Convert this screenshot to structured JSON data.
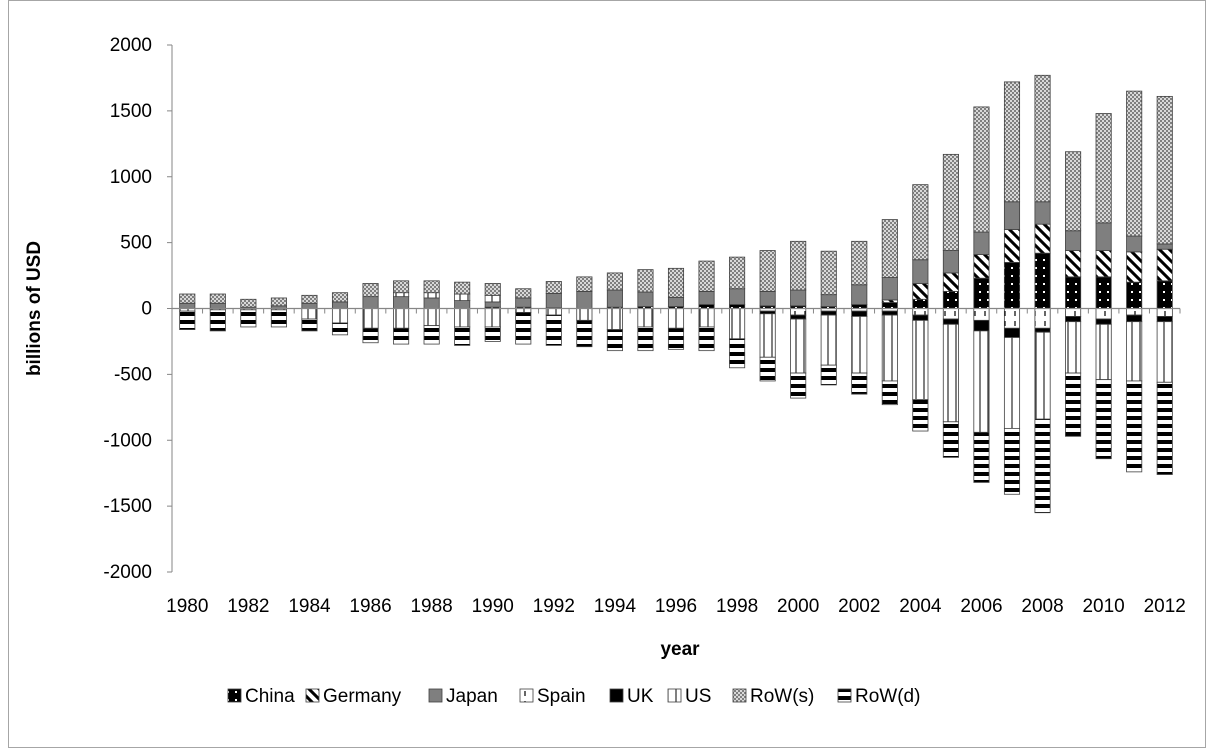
{
  "chart_data": {
    "type": "bar",
    "stacked": true,
    "xlabel": "year",
    "ylabel": "billions of USD",
    "ylim": [
      -2000,
      2000
    ],
    "yticks": [
      2000,
      1500,
      1000,
      500,
      0,
      -500,
      -1000,
      -1500,
      -2000
    ],
    "x_tick_labels": [
      "1980",
      "1982",
      "1984",
      "1986",
      "1988",
      "1990",
      "1992",
      "1994",
      "1996",
      "1998",
      "2000",
      "2002",
      "2004",
      "2006",
      "2008",
      "2010",
      "2012"
    ],
    "categories": [
      "1980",
      "1981",
      "1982",
      "1983",
      "1984",
      "1985",
      "1986",
      "1987",
      "1988",
      "1989",
      "1990",
      "1991",
      "1992",
      "1993",
      "1994",
      "1995",
      "1996",
      "1997",
      "1998",
      "1999",
      "2000",
      "2001",
      "2002",
      "2003",
      "2004",
      "2005",
      "2006",
      "2007",
      "2008",
      "2009",
      "2010",
      "2011",
      "2012"
    ],
    "legend_position": "bottom",
    "series": [
      {
        "name": "China",
        "pattern": "china",
        "values": [
          0,
          0,
          0,
          0,
          0,
          0,
          0,
          0,
          0,
          0,
          10,
          10,
          5,
          0,
          10,
          15,
          15,
          30,
          30,
          20,
          20,
          15,
          30,
          45,
          70,
          130,
          230,
          350,
          420,
          240,
          240,
          200,
          210
        ]
      },
      {
        "name": "Germany",
        "pattern": "germany",
        "values": [
          0,
          0,
          0,
          0,
          0,
          0,
          0,
          0,
          0,
          0,
          0,
          0,
          0,
          0,
          0,
          0,
          0,
          0,
          0,
          0,
          0,
          0,
          0,
          20,
          120,
          140,
          180,
          250,
          220,
          200,
          200,
          230,
          240
        ]
      },
      {
        "name": "Japan",
        "pattern": "japan",
        "values": [
          40,
          40,
          10,
          20,
          40,
          50,
          90,
          90,
          80,
          60,
          40,
          70,
          110,
          130,
          130,
          110,
          70,
          100,
          120,
          110,
          120,
          90,
          150,
          170,
          180,
          170,
          170,
          210,
          170,
          150,
          210,
          120,
          40
        ]
      },
      {
        "name": "Spain",
        "pattern": "spain",
        "values": [
          0,
          0,
          0,
          0,
          0,
          0,
          0,
          0,
          0,
          0,
          0,
          0,
          0,
          0,
          0,
          0,
          0,
          0,
          0,
          0,
          0,
          0,
          0,
          0,
          0,
          0,
          0,
          0,
          0,
          0,
          0,
          0,
          0
        ]
      },
      {
        "name": "UK",
        "pattern": "uk",
        "values": [
          0,
          0,
          0,
          0,
          0,
          0,
          0,
          0,
          0,
          0,
          0,
          0,
          0,
          0,
          0,
          0,
          0,
          0,
          0,
          0,
          0,
          0,
          0,
          0,
          0,
          0,
          0,
          0,
          0,
          0,
          0,
          0,
          0
        ]
      },
      {
        "name": "US",
        "pattern": "us",
        "values": [
          0,
          0,
          0,
          0,
          0,
          0,
          0,
          30,
          40,
          50,
          50,
          0,
          0,
          0,
          0,
          0,
          0,
          0,
          0,
          0,
          0,
          0,
          0,
          0,
          0,
          0,
          0,
          0,
          0,
          0,
          0,
          0,
          0
        ]
      },
      {
        "name": "RoW(s)",
        "pattern": "rows",
        "values": [
          70,
          70,
          60,
          60,
          60,
          70,
          100,
          90,
          90,
          90,
          90,
          70,
          90,
          110,
          130,
          170,
          220,
          230,
          240,
          310,
          370,
          330,
          330,
          440,
          570,
          730,
          950,
          910,
          960,
          600,
          830,
          1100,
          1120
        ]
      }
    ],
    "negative_series": [
      {
        "name": "China",
        "pattern": "china",
        "values": [
          0,
          0,
          0,
          0,
          0,
          0,
          0,
          0,
          0,
          0,
          0,
          0,
          0,
          0,
          0,
          0,
          0,
          0,
          0,
          0,
          0,
          0,
          0,
          0,
          0,
          0,
          0,
          0,
          0,
          0,
          0,
          0,
          0
        ]
      },
      {
        "name": "Germany",
        "pattern": "germany",
        "values": [
          0,
          0,
          0,
          0,
          0,
          0,
          0,
          0,
          0,
          0,
          0,
          0,
          0,
          0,
          0,
          0,
          0,
          0,
          0,
          0,
          0,
          0,
          0,
          0,
          0,
          0,
          0,
          0,
          0,
          0,
          0,
          0,
          0
        ]
      },
      {
        "name": "Japan",
        "pattern": "japan",
        "values": [
          0,
          0,
          0,
          0,
          0,
          0,
          0,
          0,
          0,
          0,
          0,
          0,
          0,
          0,
          0,
          0,
          0,
          0,
          0,
          0,
          0,
          0,
          0,
          0,
          0,
          0,
          0,
          0,
          0,
          0,
          0,
          0,
          0
        ]
      },
      {
        "name": "Spain",
        "pattern": "spain",
        "values": [
          0,
          0,
          0,
          0,
          0,
          0,
          0,
          0,
          0,
          0,
          0,
          0,
          0,
          0,
          0,
          0,
          0,
          0,
          0,
          20,
          50,
          20,
          20,
          20,
          50,
          80,
          90,
          150,
          150,
          60,
          80,
          50,
          60
        ]
      },
      {
        "name": "UK",
        "pattern": "uk",
        "values": [
          0,
          0,
          0,
          0,
          0,
          0,
          0,
          0,
          0,
          0,
          0,
          0,
          0,
          0,
          0,
          0,
          0,
          0,
          0,
          20,
          30,
          30,
          40,
          30,
          40,
          40,
          80,
          70,
          30,
          40,
          40,
          50,
          40
        ]
      },
      {
        "name": "US",
        "pattern": "us",
        "values": [
          20,
          10,
          10,
          10,
          80,
          110,
          150,
          150,
          130,
          140,
          140,
          30,
          50,
          90,
          160,
          140,
          150,
          140,
          230,
          330,
          410,
          380,
          430,
          500,
          600,
          740,
          770,
          690,
          660,
          390,
          420,
          450,
          460
        ]
      },
      {
        "name": "RoW(d)",
        "pattern": "rowd",
        "values": [
          140,
          160,
          130,
          130,
          90,
          90,
          110,
          120,
          140,
          140,
          110,
          240,
          230,
          200,
          160,
          180,
          160,
          180,
          220,
          180,
          190,
          150,
          160,
          180,
          240,
          270,
          380,
          500,
          710,
          480,
          600,
          690,
          700
        ]
      }
    ],
    "legend": [
      "China",
      "Germany",
      "Japan",
      "Spain",
      "UK",
      "US",
      "RoW(s)",
      "RoW(d)"
    ]
  }
}
